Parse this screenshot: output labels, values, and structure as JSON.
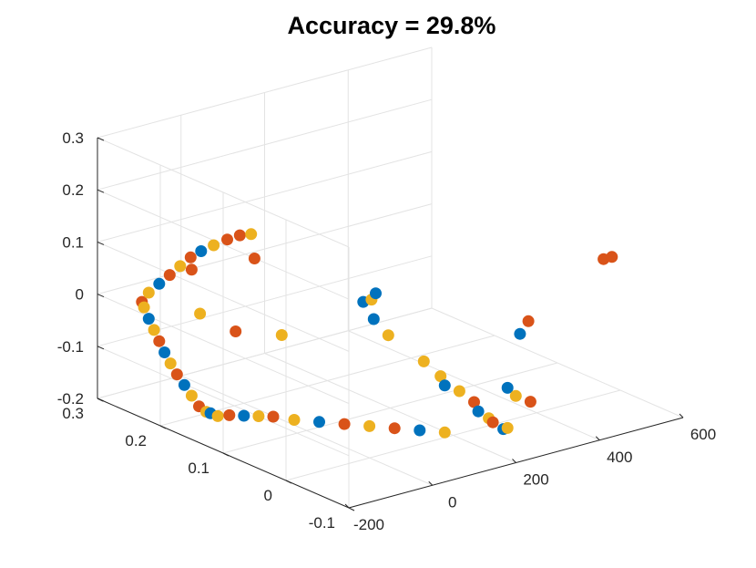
{
  "figure": {
    "title": "Accuracy = 29.8%"
  },
  "chart_data": {
    "type": "scatter",
    "title": "Accuracy = 29.8%",
    "dimensions": 3,
    "xlabel": "",
    "ylabel": "",
    "zlabel": "",
    "xlim": [
      -200,
      600
    ],
    "ylim": [
      -0.1,
      0.3
    ],
    "zlim": [
      -0.2,
      0.3
    ],
    "xticks": [
      "-200",
      "0",
      "200",
      "400",
      "600"
    ],
    "yticks": [
      "-0.1",
      "0",
      "0.1",
      "0.2",
      "0.3"
    ],
    "zticks": [
      "-0.2",
      "-0.1",
      "0",
      "0.1",
      "0.2",
      "0.3"
    ],
    "grid": true,
    "colors": [
      "#0072BD",
      "#D95319",
      "#EDB120"
    ],
    "points": [
      {
        "x": 180,
        "y": 0.0,
        "z": -0.19,
        "c": 2
      },
      {
        "x": 150,
        "y": 0.02,
        "z": -0.19,
        "c": 0
      },
      {
        "x": 120,
        "y": 0.04,
        "z": -0.19,
        "c": 1
      },
      {
        "x": 90,
        "y": 0.06,
        "z": -0.19,
        "c": 2
      },
      {
        "x": 60,
        "y": 0.08,
        "z": -0.19,
        "c": 1
      },
      {
        "x": 30,
        "y": 0.1,
        "z": -0.19,
        "c": 0
      },
      {
        "x": 0,
        "y": 0.12,
        "z": -0.19,
        "c": 2
      },
      {
        "x": -20,
        "y": 0.14,
        "z": -0.19,
        "c": 1
      },
      {
        "x": -40,
        "y": 0.15,
        "z": -0.19,
        "c": 2
      },
      {
        "x": -60,
        "y": 0.16,
        "z": -0.19,
        "c": 0
      },
      {
        "x": -80,
        "y": 0.17,
        "z": -0.19,
        "c": 1
      },
      {
        "x": -100,
        "y": 0.175,
        "z": -0.19,
        "c": 2
      },
      {
        "x": -110,
        "y": 0.18,
        "z": -0.185,
        "c": 0
      },
      {
        "x": -120,
        "y": 0.18,
        "z": -0.18,
        "c": 2
      },
      {
        "x": -130,
        "y": 0.185,
        "z": -0.17,
        "c": 1
      },
      {
        "x": -140,
        "y": 0.19,
        "z": -0.15,
        "c": 2
      },
      {
        "x": -150,
        "y": 0.195,
        "z": -0.13,
        "c": 0
      },
      {
        "x": -160,
        "y": 0.2,
        "z": -0.11,
        "c": 1
      },
      {
        "x": -168,
        "y": 0.205,
        "z": -0.09,
        "c": 2
      },
      {
        "x": -175,
        "y": 0.21,
        "z": -0.07,
        "c": 0
      },
      {
        "x": -180,
        "y": 0.215,
        "z": -0.05,
        "c": 1
      },
      {
        "x": -185,
        "y": 0.22,
        "z": -0.03,
        "c": 2
      },
      {
        "x": -190,
        "y": 0.225,
        "z": -0.01,
        "c": 0
      },
      {
        "x": -194,
        "y": 0.23,
        "z": 0.01,
        "c": 2
      },
      {
        "x": -196,
        "y": 0.232,
        "z": 0.02,
        "c": 1
      },
      {
        "x": -190,
        "y": 0.225,
        "z": 0.04,
        "c": 2
      },
      {
        "x": -180,
        "y": 0.215,
        "z": 0.06,
        "c": 0
      },
      {
        "x": -170,
        "y": 0.205,
        "z": 0.08,
        "c": 1
      },
      {
        "x": -160,
        "y": 0.195,
        "z": 0.1,
        "c": 2
      },
      {
        "x": -150,
        "y": 0.185,
        "z": 0.12,
        "c": 1
      },
      {
        "x": -140,
        "y": 0.175,
        "z": 0.135,
        "c": 0
      },
      {
        "x": -128,
        "y": 0.163,
        "z": 0.15,
        "c": 2
      },
      {
        "x": -115,
        "y": 0.15,
        "z": 0.165,
        "c": 1
      },
      {
        "x": -100,
        "y": 0.14,
        "z": 0.175,
        "c": 1
      },
      {
        "x": -88,
        "y": 0.13,
        "z": 0.18,
        "c": 2
      },
      {
        "x": -95,
        "y": 0.12,
        "z": 0.14,
        "c": 1
      },
      {
        "x": -155,
        "y": 0.18,
        "z": 0.1,
        "c": 1
      },
      {
        "x": -150,
        "y": 0.17,
        "z": 0.02,
        "c": 2
      },
      {
        "x": -140,
        "y": 0.12,
        "z": 0.01,
        "c": 1
      },
      {
        "x": -120,
        "y": 0.06,
        "z": 0.03,
        "c": 2
      },
      {
        "x": 60,
        "y": 0.05,
        "z": 0.06,
        "c": 0
      },
      {
        "x": 80,
        "y": 0.05,
        "z": 0.06,
        "c": 2
      },
      {
        "x": 90,
        "y": 0.05,
        "z": 0.07,
        "c": 0
      },
      {
        "x": 70,
        "y": 0.04,
        "z": 0.03,
        "c": 0
      },
      {
        "x": 90,
        "y": 0.03,
        "z": 0.0,
        "c": 2
      },
      {
        "x": 160,
        "y": 0.02,
        "z": -0.06,
        "c": 2
      },
      {
        "x": 170,
        "y": 0.0,
        "z": -0.08,
        "c": 2
      },
      {
        "x": 180,
        "y": 0.0,
        "z": -0.1,
        "c": 0
      },
      {
        "x": 200,
        "y": -0.01,
        "z": -0.11,
        "c": 2
      },
      {
        "x": 220,
        "y": -0.02,
        "z": -0.13,
        "c": 1
      },
      {
        "x": 230,
        "y": -0.02,
        "z": -0.15,
        "c": 0
      },
      {
        "x": 240,
        "y": -0.03,
        "z": -0.16,
        "c": 2
      },
      {
        "x": 250,
        "y": -0.03,
        "z": -0.17,
        "c": 1
      },
      {
        "x": 260,
        "y": -0.04,
        "z": -0.18,
        "c": 0
      },
      {
        "x": 270,
        "y": -0.04,
        "z": -0.18,
        "c": 2
      },
      {
        "x": 300,
        "y": -0.02,
        "z": -0.12,
        "c": 0
      },
      {
        "x": 320,
        "y": -0.02,
        "z": -0.14,
        "c": 2
      },
      {
        "x": 340,
        "y": -0.03,
        "z": -0.15,
        "c": 1
      },
      {
        "x": 360,
        "y": 0.0,
        "z": -0.04,
        "c": 0
      },
      {
        "x": 380,
        "y": 0.0,
        "z": -0.02,
        "c": 1
      },
      {
        "x": 560,
        "y": 0.0,
        "z": 0.06,
        "c": 1
      },
      {
        "x": 580,
        "y": 0.0,
        "z": 0.06,
        "c": 1
      }
    ]
  }
}
